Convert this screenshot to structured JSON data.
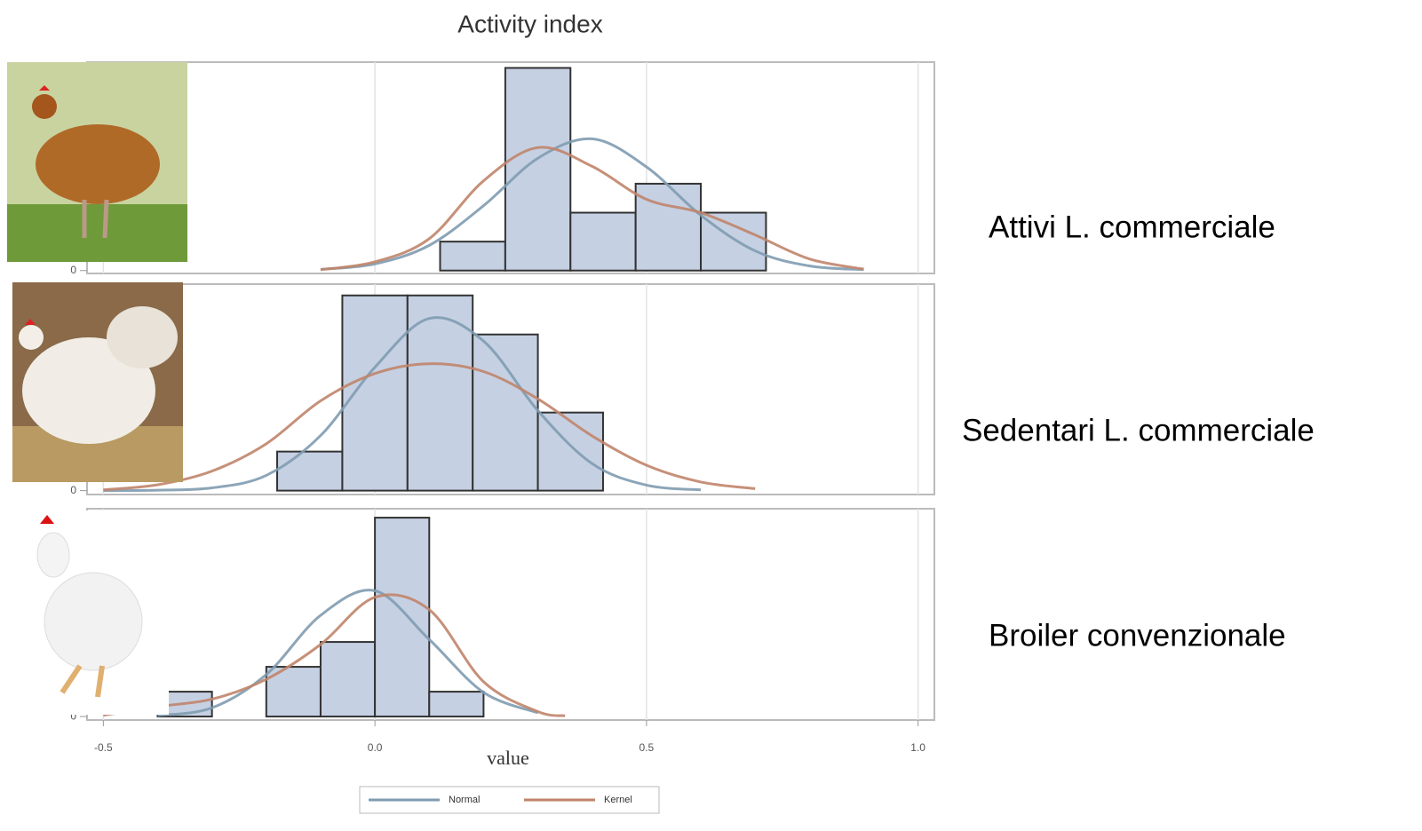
{
  "chart_data": {
    "type": "histogram",
    "title": "Activity index",
    "xlabel": "value",
    "xlim": [
      -0.53,
      1.03
    ],
    "xticks": [
      -0.5,
      {
        "value": 0,
        "label": "0.0"
      },
      0.5,
      {
        "value": 1,
        "label": "1.0"
      }
    ],
    "grid": true,
    "bar_color": "#c5d0e3",
    "series": [
      {
        "name": "Normal",
        "color": "#7f9bb0"
      },
      {
        "name": "Kernel",
        "color": "#c0846a"
      }
    ],
    "panels": [
      {
        "label": "Attivi L. commerciale",
        "bins": [
          0.12,
          0.24,
          0.36,
          0.48,
          0.6,
          0.72
        ],
        "counts": [
          1,
          7,
          2,
          3,
          2
        ],
        "ylim": [
          -0.1,
          7.2
        ],
        "yticks": [
          0
        ],
        "curves": [
          {
            "x": [
              -0.1,
              0,
              0.1,
              0.2,
              0.3,
              0.4,
              0.5,
              0.6,
              0.7,
              0.8,
              0.9
            ],
            "values": [
              0.04,
              0.23,
              0.87,
              2.24,
              3.88,
              4.55,
              3.58,
              1.91,
              0.68,
              0.16,
              0.03
            ]
          },
          {
            "x": [
              -0.1,
              0,
              0.1,
              0.2,
              0.3,
              0.4,
              0.5,
              0.6,
              0.7,
              0.8,
              0.9
            ],
            "values": [
              0.03,
              0.3,
              1.1,
              3.1,
              4.25,
              3.6,
              2.46,
              2.0,
              1.23,
              0.4,
              0.05
            ]
          }
        ]
      },
      {
        "label": "Sedentari L. commerciale",
        "bins": [
          -0.18,
          -0.06,
          0.06,
          0.18,
          0.3,
          0.42
        ],
        "counts": [
          1,
          5,
          5,
          4,
          2
        ],
        "ylim": [
          -0.1,
          5.29
        ],
        "yticks": [
          0
        ],
        "curves": [
          {
            "x": [
              -0.5,
              -0.4,
              -0.3,
              -0.2,
              -0.1,
              0,
              0.1,
              0.2,
              0.3,
              0.4,
              0.5,
              0.6
            ],
            "values": [
              0,
              0.01,
              0.07,
              0.39,
              1.41,
              3.16,
              4.41,
              3.83,
              2.05,
              0.69,
              0.14,
              0.02
            ]
          },
          {
            "x": [
              -0.5,
              -0.4,
              -0.3,
              -0.2,
              -0.1,
              0,
              0.1,
              0.2,
              0.3,
              0.4,
              0.5,
              0.6,
              0.7
            ],
            "values": [
              0.02,
              0.15,
              0.5,
              1.2,
              2.3,
              3.0,
              3.25,
              3.05,
              2.35,
              1.4,
              0.65,
              0.22,
              0.05
            ]
          }
        ]
      },
      {
        "label": "Broiler convenzionale",
        "bins": [
          -0.4,
          -0.3,
          -0.2,
          -0.1,
          0,
          0.1,
          0.2
        ],
        "counts": [
          1,
          0,
          2,
          3,
          8,
          1
        ],
        "ylim": [
          -0.14,
          8.36
        ],
        "yticks": [
          0
        ],
        "curves": [
          {
            "x": [
              -0.4,
              -0.3,
              -0.2,
              -0.1,
              0,
              0.1,
              0.2,
              0.3
            ],
            "values": [
              0.04,
              0.35,
              1.69,
              4.07,
              5.06,
              3.1,
              0.97,
              0.15
            ]
          },
          {
            "x": [
              -0.5,
              -0.4,
              -0.3,
              -0.2,
              -0.1,
              0,
              0.1,
              0.2,
              0.3,
              0.35
            ],
            "values": [
              0.05,
              0.4,
              0.7,
              1.5,
              2.9,
              4.8,
              4.3,
              1.4,
              0.2,
              0.03
            ]
          }
        ]
      }
    ]
  }
}
